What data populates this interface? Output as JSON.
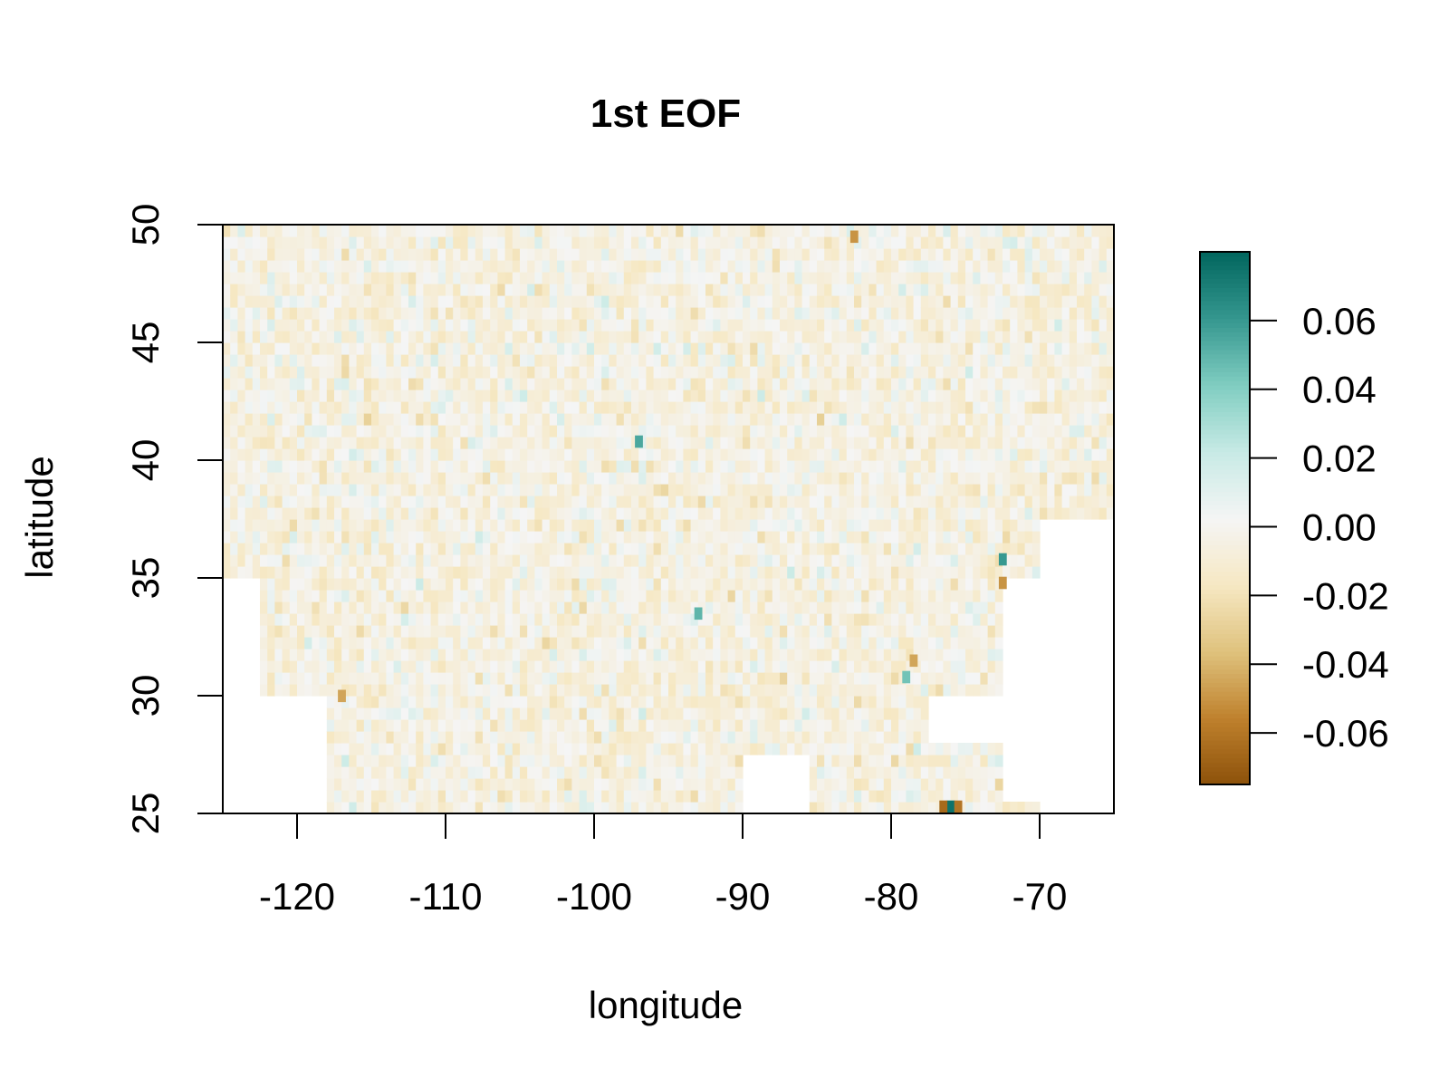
{
  "chart_data": {
    "type": "heatmap",
    "title": "1st EOF",
    "xlabel": "longitude",
    "ylabel": "latitude",
    "xlim": [
      -125,
      -65
    ],
    "ylim": [
      25,
      50
    ],
    "x_ticks": [
      -120,
      -110,
      -100,
      -90,
      -80,
      -70
    ],
    "x_tick_labels": [
      "-120",
      "-110",
      "-100",
      "-90",
      "-80",
      "-70"
    ],
    "y_ticks": [
      25,
      30,
      35,
      40,
      45,
      50
    ],
    "y_tick_labels": [
      "25",
      "30",
      "35",
      "40",
      "45",
      "50"
    ],
    "grid_resolution_deg": 0.5,
    "value_range": [
      -0.075,
      0.08
    ],
    "colorbar": {
      "ticks": [
        0.06,
        0.04,
        0.02,
        0.0,
        -0.02,
        -0.04,
        -0.06
      ],
      "tick_labels": [
        "0.06",
        "0.04",
        "0.02",
        "0.00",
        "-0.02",
        "-0.04",
        "-0.06"
      ],
      "colors_low_to_high": [
        "#8c510a",
        "#bf812d",
        "#dfc27d",
        "#f6e8c3",
        "#f5f5f5",
        "#c7eae5",
        "#80cdc1",
        "#35978f",
        "#01665e"
      ]
    },
    "no_data_regions_lonlat": [
      {
        "lon": [
          -125,
          -122.5
        ],
        "lat": [
          25,
          35
        ]
      },
      {
        "lon": [
          -122.5,
          -118
        ],
        "lat": [
          25,
          30
        ]
      },
      {
        "lon": [
          -90,
          -85.5
        ],
        "lat": [
          25,
          27.5
        ]
      },
      {
        "lon": [
          -77.5,
          -72.5
        ],
        "lat": [
          28,
          30
        ]
      },
      {
        "lon": [
          -72.5,
          -70
        ],
        "lat": [
          25.5,
          35
        ]
      },
      {
        "lon": [
          -70,
          -65
        ],
        "lat": [
          25,
          37.5
        ]
      }
    ],
    "notable_cells": [
      {
        "lon": -76,
        "lat": 25.3,
        "value": 0.075
      },
      {
        "lon": -75.5,
        "lat": 25.3,
        "value": -0.06
      },
      {
        "lon": -76.5,
        "lat": 25.3,
        "value": -0.065
      },
      {
        "lon": -72.5,
        "lat": 35.8,
        "value": 0.06
      },
      {
        "lon": -72.5,
        "lat": 34.8,
        "value": -0.05
      },
      {
        "lon": -97,
        "lat": 40.8,
        "value": 0.055
      },
      {
        "lon": -93,
        "lat": 33.5,
        "value": 0.05
      },
      {
        "lon": -82.5,
        "lat": 49.5,
        "value": -0.05
      },
      {
        "lon": -117,
        "lat": 30,
        "value": -0.045
      },
      {
        "lon": -79,
        "lat": 30.8,
        "value": 0.045
      },
      {
        "lon": -78.5,
        "lat": 31.5,
        "value": -0.045
      }
    ]
  }
}
